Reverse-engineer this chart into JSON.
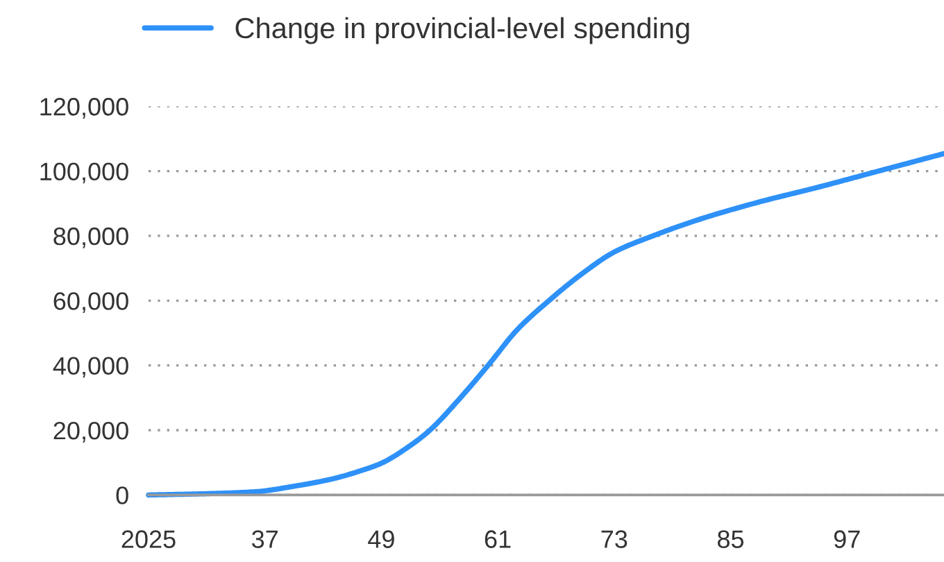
{
  "chart_data": {
    "type": "line",
    "x": [
      2025,
      2031,
      2036,
      2040,
      2044,
      2047,
      2049,
      2052,
      2054,
      2057,
      2060,
      2063,
      2066,
      2070,
      2073,
      2077,
      2082,
      2088,
      2094,
      2100,
      2107
    ],
    "series": [
      {
        "name": "Change in provincial-level spending",
        "color": "#2e91f8",
        "values": [
          0,
          400,
          1000,
          2700,
          5000,
          7600,
          9800,
          15300,
          20000,
          29500,
          40000,
          51000,
          59300,
          69000,
          75000,
          80000,
          85300,
          90500,
          95000,
          99800,
          105400
        ]
      }
    ],
    "xlim": [
      2025,
      2107
    ],
    "xticks": [
      2025,
      {
        "value": 2037,
        "label": "37"
      },
      {
        "value": 2049,
        "label": "49"
      },
      {
        "value": 2061,
        "label": "61"
      },
      {
        "value": 2073,
        "label": "73"
      },
      {
        "value": 2085,
        "label": "85"
      },
      {
        "value": 2097,
        "label": "97"
      }
    ],
    "ylim": [
      0,
      120000
    ],
    "yticks": [
      0,
      {
        "value": 20000,
        "label": "20,000"
      },
      {
        "value": 40000,
        "label": "40,000"
      },
      {
        "value": 60000,
        "label": "60,000"
      },
      {
        "value": 80000,
        "label": "80,000"
      },
      {
        "value": 100000,
        "label": "100,000"
      },
      {
        "value": 120000,
        "label": "120,000"
      }
    ],
    "grid": "y",
    "legend": "top left",
    "marker": "none",
    "line_style": "solid"
  }
}
